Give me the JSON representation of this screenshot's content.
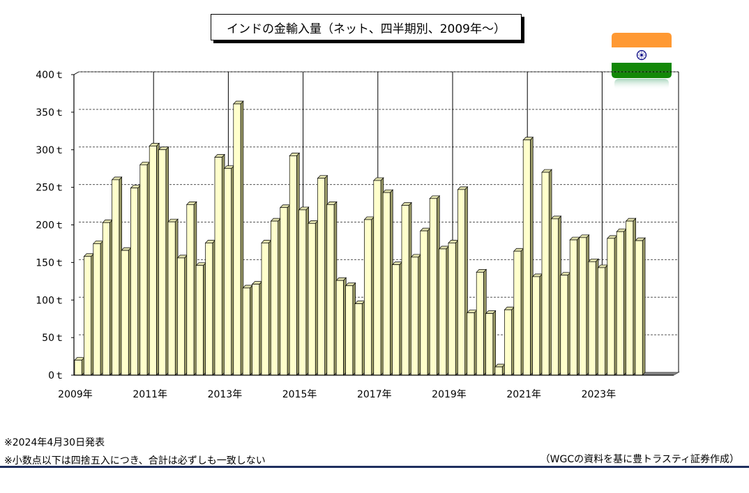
{
  "title": "インドの金輸入量（ネット、四半期別、2009年～）",
  "notes": {
    "published": "※2024年4月30日発表",
    "rounding": "※小数点以下は四捨五入につき、合計は必ずしも一致しない",
    "source": "（WGCの資料を基に豊トラスティ証券作成）"
  },
  "colors": {
    "bar_front": "#ffffcc",
    "bar_side": "#999966",
    "bar_top": "#ddddaa",
    "grid": "#555555",
    "flag_saffron": "#ff9933",
    "flag_green": "#138808",
    "flag_chakra": "#000080",
    "rule": "#1f2f5e"
  },
  "flag": {
    "icon": "india-flag-icon"
  },
  "chart_data": {
    "type": "bar",
    "title": "インドの金輸入量（ネット、四半期別、2009年～）",
    "xlabel": "",
    "ylabel": "",
    "unit_suffix": "ｔ",
    "ylim": [
      0,
      400
    ],
    "yticks": [
      0,
      50,
      100,
      150,
      200,
      250,
      300,
      350,
      400
    ],
    "ytick_labels": [
      "0ｔ",
      "50ｔ",
      "100ｔ",
      "150ｔ",
      "200ｔ",
      "250ｔ",
      "300ｔ",
      "350ｔ",
      "400ｔ"
    ],
    "xtick_labels": [
      "2009年",
      "2011年",
      "2013年",
      "2015年",
      "2017年",
      "2019年",
      "2021年",
      "2023年"
    ],
    "grid": true,
    "legend": "none",
    "categories": [
      "2009Q1",
      "2009Q2",
      "2009Q3",
      "2009Q4",
      "2010Q1",
      "2010Q2",
      "2010Q3",
      "2010Q4",
      "2011Q1",
      "2011Q2",
      "2011Q3",
      "2011Q4",
      "2012Q1",
      "2012Q2",
      "2012Q3",
      "2012Q4",
      "2013Q1",
      "2013Q2",
      "2013Q3",
      "2013Q4",
      "2014Q1",
      "2014Q2",
      "2014Q3",
      "2014Q4",
      "2015Q1",
      "2015Q2",
      "2015Q3",
      "2015Q4",
      "2016Q1",
      "2016Q2",
      "2016Q3",
      "2016Q4",
      "2017Q1",
      "2017Q2",
      "2017Q3",
      "2017Q4",
      "2018Q1",
      "2018Q2",
      "2018Q3",
      "2018Q4",
      "2019Q1",
      "2019Q2",
      "2019Q3",
      "2019Q4",
      "2020Q1",
      "2020Q2",
      "2020Q3",
      "2020Q4",
      "2021Q1",
      "2021Q2",
      "2021Q3",
      "2021Q4",
      "2022Q1",
      "2022Q2",
      "2022Q3",
      "2022Q4",
      "2023Q1",
      "2023Q2",
      "2023Q3",
      "2023Q4",
      "2024Q1"
    ],
    "values": [
      20,
      158,
      175,
      203,
      260,
      166,
      249,
      280,
      305,
      300,
      204,
      156,
      227,
      146,
      176,
      290,
      275,
      361,
      116,
      121,
      176,
      205,
      223,
      292,
      220,
      202,
      262,
      227,
      126,
      119,
      95,
      207,
      259,
      243,
      147,
      226,
      157,
      192,
      235,
      168,
      176,
      247,
      83,
      137,
      82,
      11,
      87,
      165,
      313,
      131,
      270,
      208,
      133,
      180,
      183,
      151,
      143,
      182,
      191,
      205,
      179
    ]
  }
}
